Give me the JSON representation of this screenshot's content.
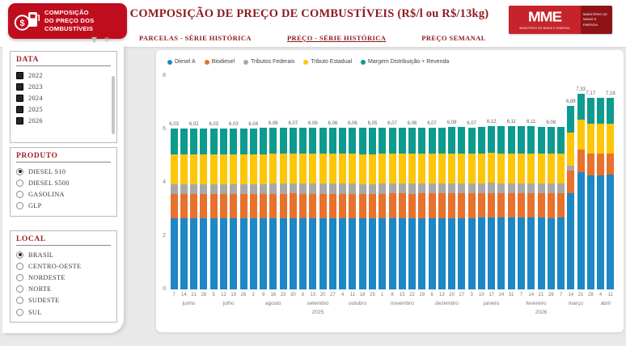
{
  "header": {
    "logo": {
      "lines": [
        "COMPOSIÇÃO",
        "DO PREÇO DOS",
        "COMBUSTÍVEIS"
      ]
    },
    "title": "COMPOSIÇÃO DE PREÇO DE COMBUSTÍVEIS (R$/l ou R$/13kg)",
    "tabs": [
      {
        "label": "PARCELAS - SÉRIE HISTÓRICA",
        "active": false
      },
      {
        "label": "PREÇO - SÉRIE HISTÓRICA",
        "active": true
      },
      {
        "label": "PREÇO SEMANAL",
        "active": false
      }
    ],
    "mme": {
      "acronym": "MME",
      "caption": "MINISTÉRIO DE MINAS E ENERGIA",
      "right_lines": [
        "MINISTÉRIO DE",
        "MINAS E ENERGIA"
      ]
    }
  },
  "filters": {
    "data": {
      "title": "DATA",
      "options": [
        {
          "label": "2022",
          "checked": true
        },
        {
          "label": "2023",
          "checked": true
        },
        {
          "label": "2024",
          "checked": true
        },
        {
          "label": "2025",
          "checked": true
        },
        {
          "label": "2026",
          "checked": true
        }
      ]
    },
    "produto": {
      "title": "PRODUTO",
      "options": [
        {
          "label": "DIESEL S10",
          "selected": true
        },
        {
          "label": "DIESEL S500",
          "selected": false
        },
        {
          "label": "GASOLINA",
          "selected": false
        },
        {
          "label": "GLP",
          "selected": false
        }
      ]
    },
    "local": {
      "title": "LOCAL",
      "options": [
        {
          "label": "BRASIL",
          "selected": true
        },
        {
          "label": "CENTRO-OESTE",
          "selected": false
        },
        {
          "label": "NORDESTE",
          "selected": false
        },
        {
          "label": "NORTE",
          "selected": false
        },
        {
          "label": "SUDESTE",
          "selected": false
        },
        {
          "label": "SUL",
          "selected": false
        }
      ]
    }
  },
  "chart_data": {
    "type": "bar",
    "stacked": true,
    "legend_position": "top",
    "ylim": [
      0,
      8
    ],
    "yticks": [
      0,
      2,
      4,
      6,
      8
    ],
    "grid": false,
    "categories": [
      "7",
      "14",
      "21",
      "28",
      "5",
      "12",
      "19",
      "26",
      "2",
      "9",
      "16",
      "23",
      "30",
      "6",
      "13",
      "20",
      "27",
      "4",
      "11",
      "18",
      "25",
      "1",
      "8",
      "15",
      "22",
      "29",
      "6",
      "13",
      "20",
      "27",
      "3",
      "10",
      "17",
      "24",
      "31",
      "7",
      "14",
      "21",
      "28",
      "7",
      "14",
      "21",
      "28",
      "4",
      "11"
    ],
    "month_groups": [
      {
        "label": "junho",
        "count": 4
      },
      {
        "label": "julho",
        "count": 4
      },
      {
        "label": "agosto",
        "count": 5
      },
      {
        "label": "setembro",
        "count": 4
      },
      {
        "label": "outubro",
        "count": 4
      },
      {
        "label": "novembro",
        "count": 5
      },
      {
        "label": "dezembro",
        "count": 4
      },
      {
        "label": "janeiro",
        "count": 5
      },
      {
        "label": "fevereiro",
        "count": 4
      },
      {
        "label": "março",
        "count": 4
      },
      {
        "label": "abril",
        "count": 2
      }
    ],
    "year_groups": [
      {
        "label": "2025",
        "count": 30
      },
      {
        "label": "2026",
        "count": 15
      }
    ],
    "series": [
      {
        "name": "Diesel A",
        "color": "#1e87c5",
        "values": [
          2.66,
          2.66,
          2.66,
          2.66,
          2.66,
          2.66,
          2.66,
          2.66,
          2.66,
          2.67,
          2.67,
          2.67,
          2.68,
          2.67,
          2.67,
          2.67,
          2.67,
          2.67,
          2.67,
          2.67,
          2.67,
          2.67,
          2.68,
          2.68,
          2.67,
          2.68,
          2.68,
          2.68,
          2.68,
          2.68,
          2.68,
          2.69,
          2.7,
          2.69,
          2.69,
          2.69,
          2.69,
          2.69,
          2.68,
          2.69,
          3.6,
          4.4,
          4.28,
          4.28,
          4.29
        ]
      },
      {
        "name": "Biodiesel",
        "color": "#e8712c",
        "values": [
          0.91,
          0.91,
          0.91,
          0.91,
          0.91,
          0.91,
          0.91,
          0.91,
          0.91,
          0.91,
          0.92,
          0.92,
          0.92,
          0.92,
          0.92,
          0.92,
          0.92,
          0.92,
          0.92,
          0.91,
          0.91,
          0.92,
          0.92,
          0.92,
          0.92,
          0.92,
          0.92,
          0.92,
          0.92,
          0.92,
          0.92,
          0.92,
          0.92,
          0.92,
          0.92,
          0.92,
          0.92,
          0.92,
          0.92,
          0.92,
          0.85,
          0.83,
          0.81,
          0.81,
          0.81
        ]
      },
      {
        "name": "Tributos Federais",
        "color": "#a8a8a8",
        "values": [
          0.37,
          0.37,
          0.37,
          0.37,
          0.37,
          0.37,
          0.37,
          0.37,
          0.37,
          0.37,
          0.37,
          0.37,
          0.37,
          0.37,
          0.37,
          0.37,
          0.37,
          0.37,
          0.37,
          0.37,
          0.37,
          0.37,
          0.37,
          0.37,
          0.37,
          0.37,
          0.37,
          0.37,
          0.37,
          0.37,
          0.37,
          0.37,
          0.37,
          0.37,
          0.37,
          0.37,
          0.37,
          0.37,
          0.37,
          0.37,
          0.2,
          0.0,
          0.0,
          0.0,
          0.0
        ]
      },
      {
        "name": "Tributo Estadual",
        "color": "#fdc608",
        "values": [
          1.11,
          1.11,
          1.11,
          1.11,
          1.11,
          1.11,
          1.11,
          1.11,
          1.11,
          1.11,
          1.12,
          1.12,
          1.12,
          1.12,
          1.12,
          1.12,
          1.12,
          1.12,
          1.12,
          1.11,
          1.11,
          1.12,
          1.12,
          1.12,
          1.12,
          1.12,
          1.12,
          1.12,
          1.12,
          1.12,
          1.12,
          1.12,
          1.12,
          1.12,
          1.12,
          1.12,
          1.12,
          1.12,
          1.12,
          1.12,
          1.24,
          1.13,
          1.11,
          1.11,
          1.11
        ]
      },
      {
        "name": "Margem Distribuição + Revenda",
        "color": "#0d9b8f",
        "values": [
          0.98,
          0.97,
          0.97,
          0.98,
          0.98,
          0.98,
          0.98,
          0.99,
          0.99,
          0.99,
          0.98,
          0.98,
          0.98,
          0.98,
          0.98,
          0.98,
          0.98,
          0.98,
          0.98,
          0.99,
          0.99,
          0.98,
          0.98,
          0.98,
          0.98,
          0.98,
          0.98,
          0.98,
          0.99,
          0.99,
          0.98,
          1.0,
          1.01,
          1.01,
          1.01,
          1.01,
          1.01,
          1.0,
          0.99,
          1.0,
          1.0,
          0.97,
          0.97,
          0.97,
          0.97
        ]
      }
    ],
    "totals": [
      6.03,
      6.02,
      6.02,
      6.03,
      6.03,
      6.03,
      6.03,
      6.04,
      6.04,
      6.05,
      6.06,
      6.06,
      6.07,
      6.06,
      6.06,
      6.06,
      6.06,
      6.06,
      6.06,
      6.05,
      6.05,
      6.06,
      6.07,
      6.07,
      6.06,
      6.07,
      6.07,
      6.07,
      6.08,
      6.08,
      6.07,
      6.1,
      6.12,
      6.11,
      6.11,
      6.11,
      6.11,
      6.1,
      6.08,
      6.1,
      6.89,
      7.33,
      7.17,
      7.17,
      7.18
    ],
    "bar_labels": [
      "6,03",
      "",
      "6,02",
      "",
      "6,03",
      "",
      "6,03",
      "",
      "6,04",
      "",
      "6,06",
      "",
      "6,07",
      "",
      "6,06",
      "",
      "6,06",
      "",
      "6,06",
      "",
      "6,05",
      "",
      "6,07",
      "",
      "6,06",
      "",
      "6,07",
      "",
      "6,08",
      "",
      "6,07",
      "",
      "6,12",
      "",
      "6,11",
      "",
      "6,11",
      "",
      "6,08",
      "",
      "6,89",
      "7,33",
      "7,17",
      "",
      "7,18"
    ]
  },
  "colors": {
    "accent_red": "#c00d1e",
    "title_red": "#8e191d",
    "page_bg": "#e9e9e9"
  }
}
